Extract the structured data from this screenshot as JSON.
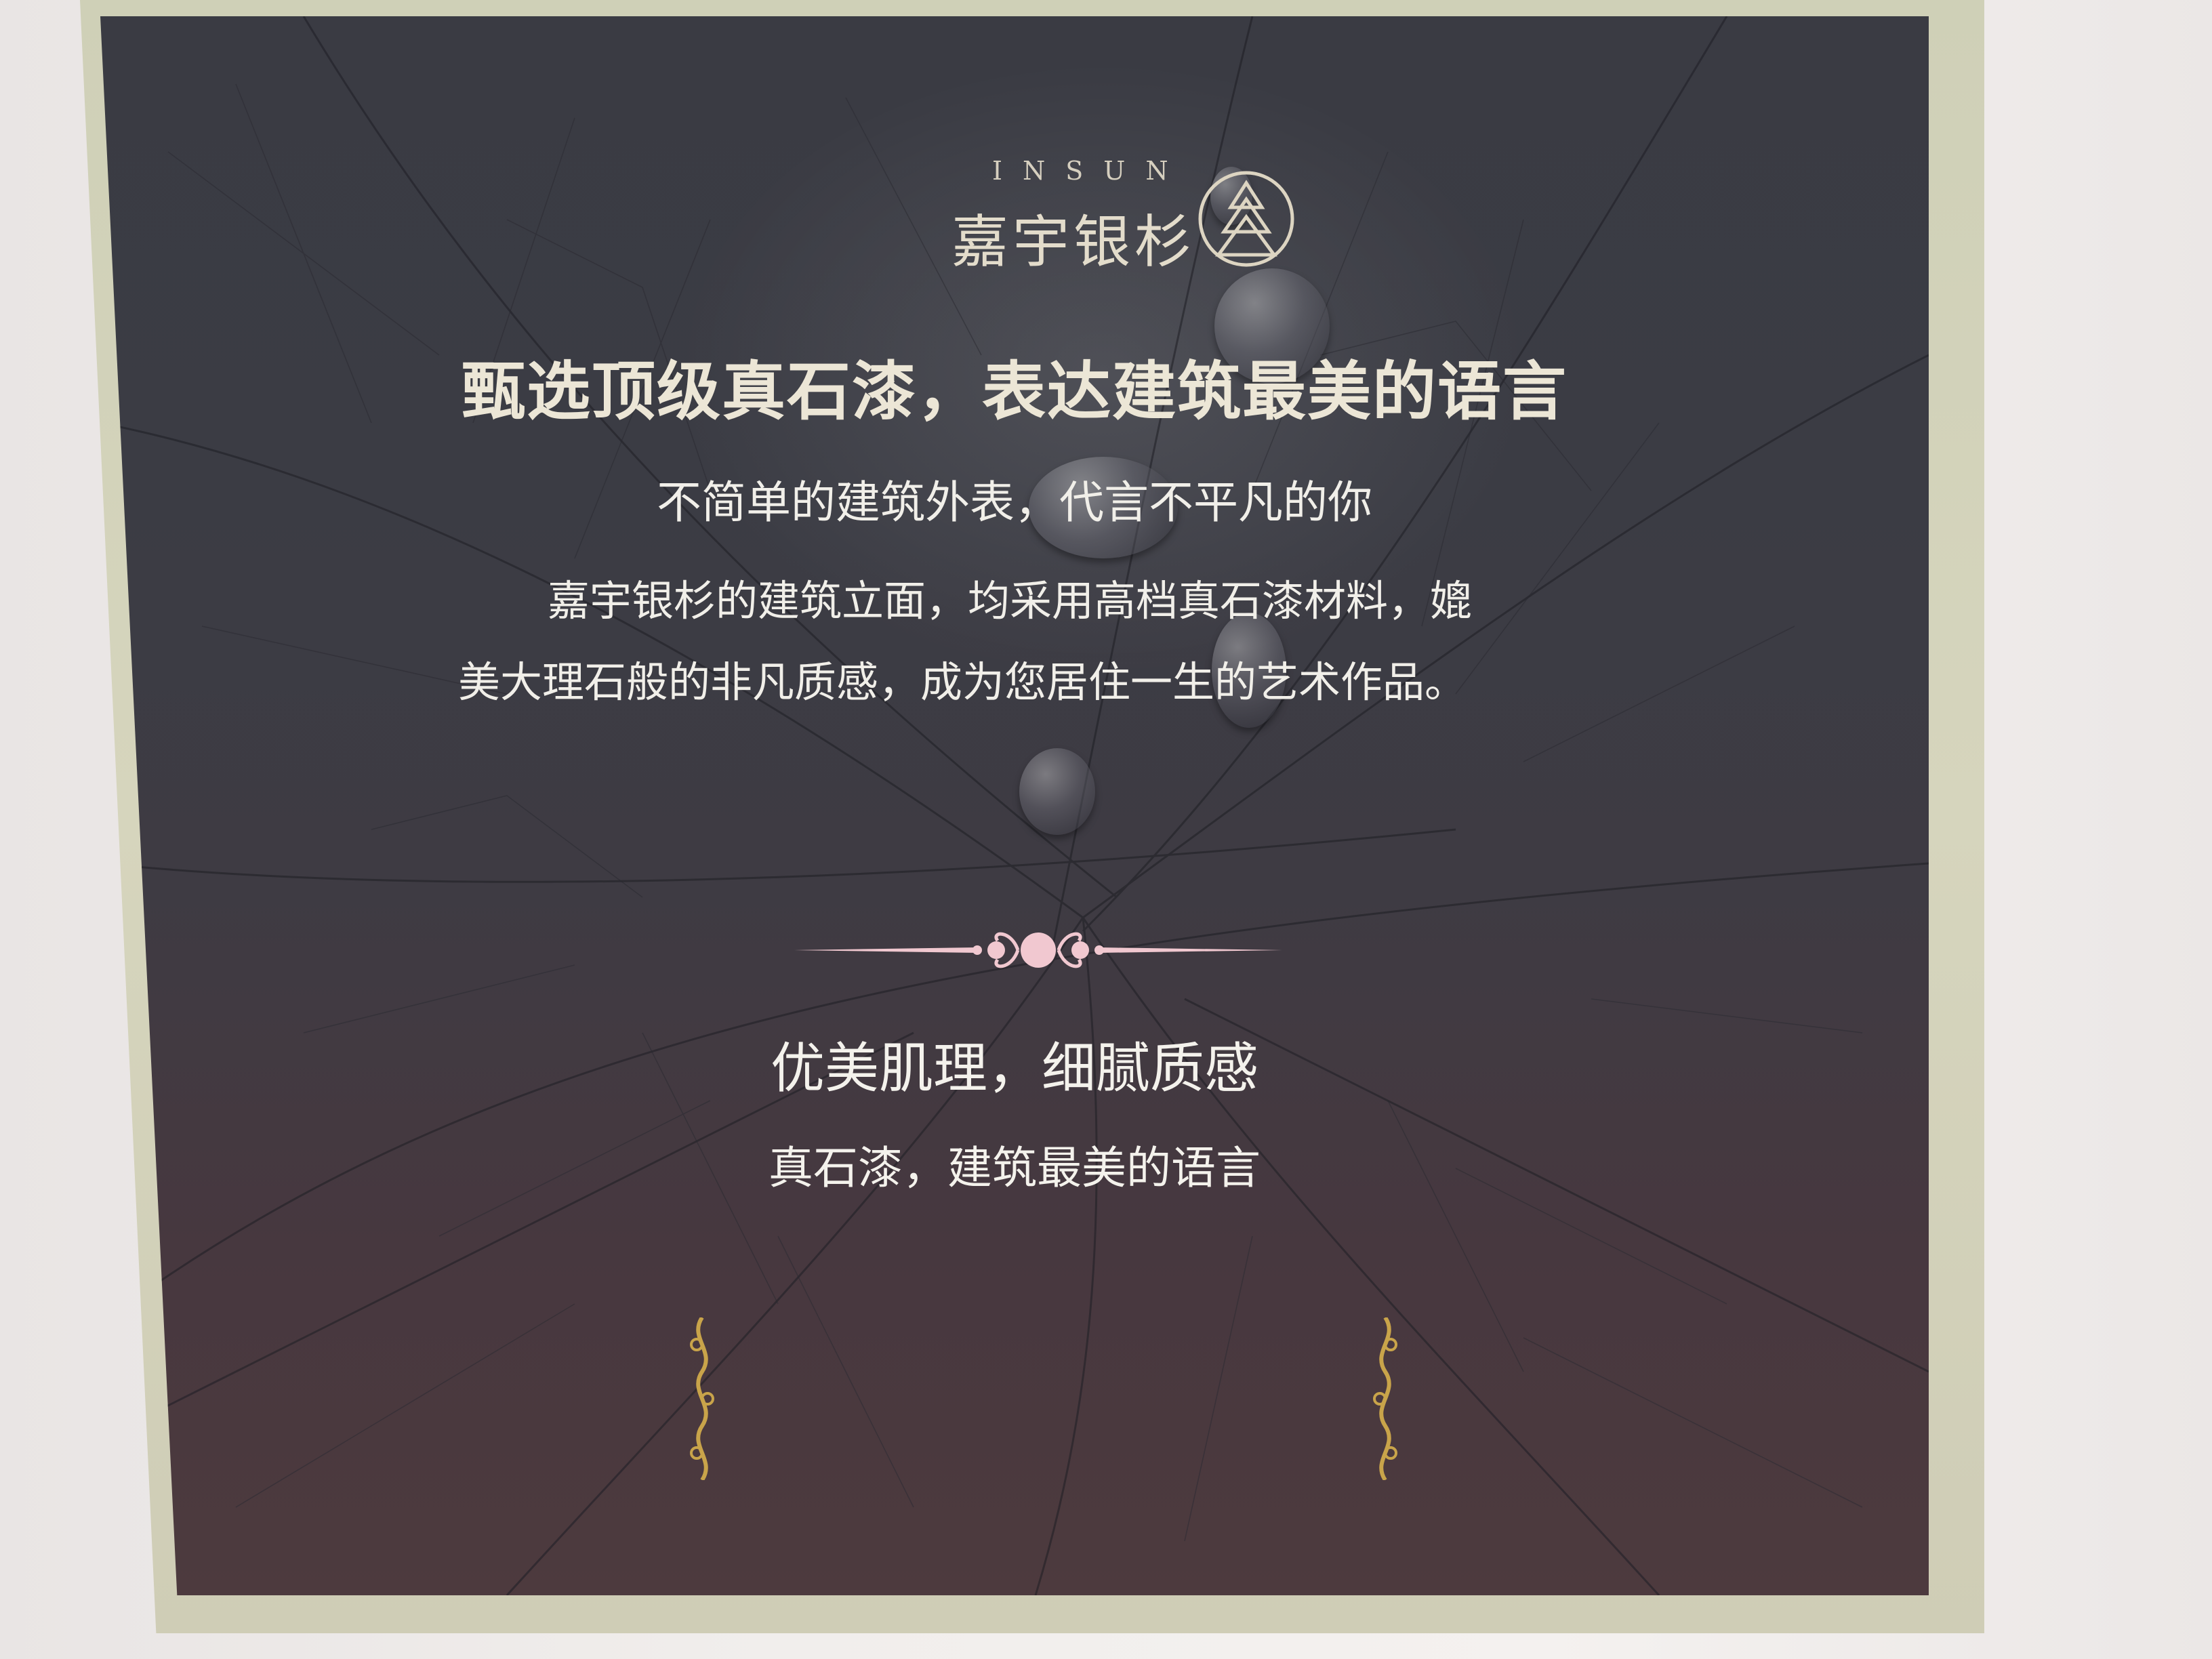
{
  "scene": {
    "subject": "framed sign on a wall"
  },
  "logo": {
    "latin": "INSUN",
    "chinese": "嘉宇银杉",
    "emblem": "tree-emblem-icon"
  },
  "headline": "甄选顶级真石漆，表达建筑最美的语言",
  "subhead": "不简单的建筑外表，代言不平凡的你",
  "body": {
    "line_1": "嘉宇银杉的建筑立面，均采用高档真石漆材料，媲",
    "line_2": "美大理石般的非凡质感，成为您居住一生的艺术作品。"
  },
  "section": {
    "heading": "优美肌理，细腻质感",
    "tagline": "真石漆，建筑最美的语言"
  },
  "ornaments": {
    "divider": "ornamental-divider-icon",
    "left": "gold-scroll-ornament-icon",
    "right": "gold-scroll-ornament-icon"
  },
  "colors": {
    "panel": "#3b3c44",
    "panel_bottom": "#4d3a3e",
    "frame": "#d3d2ba",
    "text": "#f1efe9",
    "gold": "#c9a44a",
    "pink_ornament": "#f1c8d0"
  }
}
